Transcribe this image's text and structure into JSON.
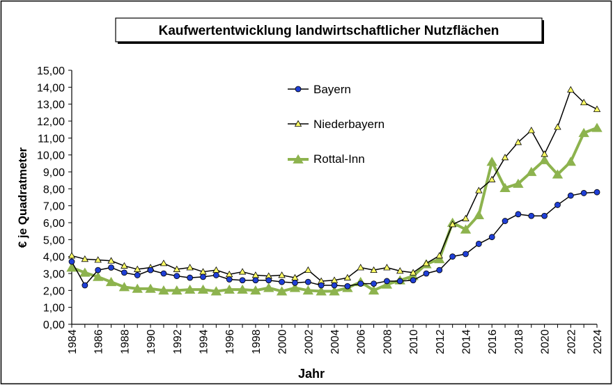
{
  "chart_data": {
    "type": "line",
    "title": "Kaufwertentwicklung landwirtschaftlicher Nutzflächen",
    "xlabel": "Jahr",
    "ylabel": "€ je Quadratmeter",
    "xlim": [
      1984,
      2024
    ],
    "ylim": [
      0,
      15
    ],
    "x_ticks": [
      "1984",
      "1986",
      "1988",
      "1990",
      "1992",
      "1994",
      "1996",
      "1998",
      "2000",
      "2002",
      "2004",
      "2006",
      "2008",
      "2010",
      "2012",
      "2014",
      "2016",
      "2018",
      "2020",
      "2022",
      "2024"
    ],
    "y_ticks": [
      "0,00",
      "1,00",
      "2,00",
      "3,00",
      "4,00",
      "5,00",
      "6,00",
      "7,00",
      "8,00",
      "9,00",
      "10,00",
      "11,00",
      "12,00",
      "13,00",
      "14,00",
      "15,00"
    ],
    "grid": false,
    "legend_position": "top-center",
    "x": [
      1984,
      1985,
      1986,
      1987,
      1988,
      1989,
      1990,
      1991,
      1992,
      1993,
      1994,
      1995,
      1996,
      1997,
      1998,
      1999,
      2000,
      2001,
      2002,
      2003,
      2004,
      2005,
      2006,
      2007,
      2008,
      2009,
      2010,
      2011,
      2012,
      2013,
      2014,
      2015,
      2016,
      2017,
      2018,
      2019,
      2020,
      2021,
      2022,
      2023,
      2024
    ],
    "series": [
      {
        "name": "Bayern",
        "color": "#000000",
        "marker_color": "#1f3fd6",
        "marker": "circle",
        "values": [
          3.7,
          2.3,
          3.2,
          3.35,
          3.05,
          2.9,
          3.2,
          3.0,
          2.85,
          2.75,
          2.8,
          2.9,
          2.65,
          2.6,
          2.6,
          2.6,
          2.5,
          2.45,
          2.5,
          2.3,
          2.3,
          2.25,
          2.4,
          2.4,
          2.55,
          2.55,
          2.6,
          3.0,
          3.2,
          4.0,
          4.15,
          4.75,
          5.15,
          6.1,
          6.5,
          6.4,
          6.4,
          7.05,
          7.6,
          7.75,
          7.8
        ]
      },
      {
        "name": "Niederbayern",
        "color": "#000000",
        "marker_color": "#ffff66",
        "marker": "triangle",
        "values": [
          4.05,
          3.85,
          3.8,
          3.75,
          3.45,
          3.25,
          3.35,
          3.6,
          3.25,
          3.35,
          3.1,
          3.2,
          2.95,
          3.1,
          2.9,
          2.85,
          2.9,
          2.75,
          3.2,
          2.55,
          2.6,
          2.75,
          3.35,
          3.2,
          3.35,
          3.15,
          3.05,
          3.6,
          4.05,
          5.9,
          6.25,
          7.9,
          8.55,
          9.85,
          10.75,
          11.45,
          10.05,
          11.65,
          13.85,
          13.1,
          12.7
        ]
      },
      {
        "name": "Rottal-Inn",
        "color": "#8db34e",
        "marker_color": "#8db34e",
        "marker": "triangle",
        "values": [
          3.35,
          3.05,
          2.8,
          2.5,
          2.2,
          2.1,
          2.1,
          2.0,
          2.0,
          2.05,
          2.05,
          1.95,
          2.05,
          2.05,
          2.0,
          2.15,
          1.95,
          2.15,
          2.0,
          1.95,
          1.95,
          2.15,
          2.5,
          2.0,
          2.35,
          2.6,
          2.85,
          3.55,
          3.85,
          6.0,
          5.6,
          6.45,
          9.6,
          8.05,
          8.3,
          9.0,
          9.7,
          8.85,
          9.6,
          11.3,
          11.6
        ]
      }
    ]
  }
}
